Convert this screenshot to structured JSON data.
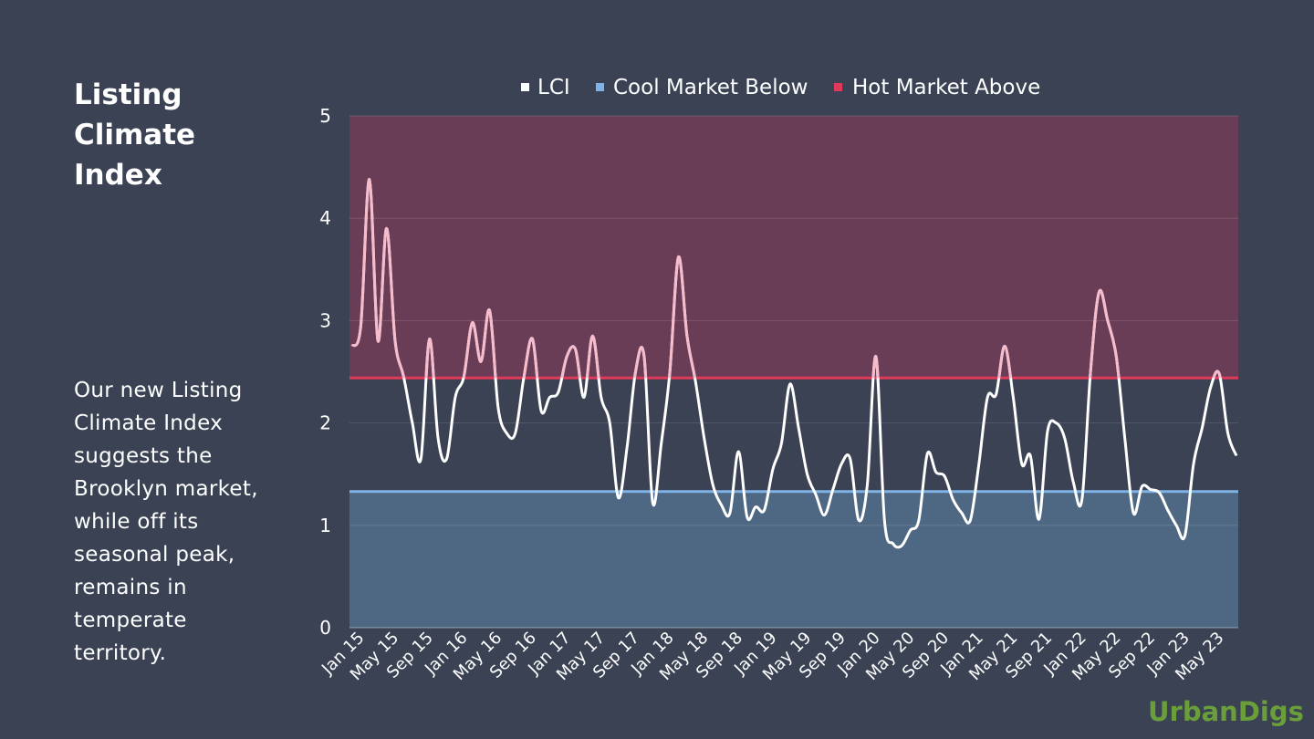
{
  "title": "Listing Climate Index",
  "description": "Our new Listing Climate Index suggests the Brooklyn market, while off its seasonal peak, remains in temperate territory.",
  "brand": "UrbanDigs",
  "colors": {
    "background": "#3a4254",
    "hot_zone": "#6a3d57",
    "cool_zone": "#4e6783",
    "hot_line": "#e03a5a",
    "cool_line": "#7fb3e6",
    "lci_line": "#ffffff",
    "lci_hot_line": "#f6bccb",
    "brand": "#6a9e3a"
  },
  "chart_data": {
    "type": "line",
    "title": "",
    "xlabel": "",
    "ylabel": "",
    "ylim": [
      0,
      5
    ],
    "yticks": [
      0,
      1,
      2,
      3,
      4,
      5
    ],
    "legend": [
      {
        "label": "LCI",
        "color": "#ffffff"
      },
      {
        "label": "Cool Market Below",
        "color": "#7fb3e6"
      },
      {
        "label": "Hot Market Above",
        "color": "#e03a5a"
      }
    ],
    "thresholds": {
      "cool_market_below": 1.33,
      "hot_market_above": 2.44
    },
    "x_tick_labels": [
      "Jan 15",
      "May 15",
      "Sep 15",
      "Jan 16",
      "May 16",
      "Sep 16",
      "Jan 17",
      "May 17",
      "Sep 17",
      "Jan 18",
      "May 18",
      "Sep 18",
      "Jan 19",
      "May 19",
      "Sep 19",
      "Jan 20",
      "May 20",
      "Sep 20",
      "Jan 21",
      "May 21",
      "Sep 21",
      "Jan 22",
      "May 22",
      "Sep 22",
      "Jan 23",
      "May 23"
    ],
    "series": [
      {
        "name": "LCI",
        "values": [
          2.75,
          2.95,
          4.38,
          2.8,
          3.9,
          2.8,
          2.45,
          2.0,
          1.65,
          2.82,
          1.85,
          1.65,
          2.25,
          2.45,
          2.98,
          2.6,
          3.1,
          2.15,
          1.9,
          1.9,
          2.45,
          2.82,
          2.12,
          2.25,
          2.3,
          2.65,
          2.72,
          2.25,
          2.85,
          2.25,
          2.0,
          1.27,
          1.75,
          2.5,
          2.65,
          1.22,
          1.8,
          2.5,
          3.62,
          2.85,
          2.4,
          1.85,
          1.4,
          1.2,
          1.12,
          1.72,
          1.08,
          1.18,
          1.15,
          1.55,
          1.8,
          2.38,
          1.95,
          1.5,
          1.3,
          1.1,
          1.35,
          1.6,
          1.65,
          1.05,
          1.4,
          2.65,
          1.05,
          0.82,
          0.8,
          0.95,
          1.05,
          1.7,
          1.52,
          1.48,
          1.25,
          1.12,
          1.05,
          1.6,
          2.25,
          2.28,
          2.75,
          2.25,
          1.6,
          1.68,
          1.06,
          1.92,
          2.0,
          1.85,
          1.42,
          1.25,
          2.5,
          3.28,
          3.0,
          2.65,
          1.85,
          1.12,
          1.38,
          1.35,
          1.32,
          1.15,
          1.0,
          0.9,
          1.6,
          1.95,
          2.35,
          2.48,
          1.9,
          1.68
        ]
      }
    ]
  }
}
